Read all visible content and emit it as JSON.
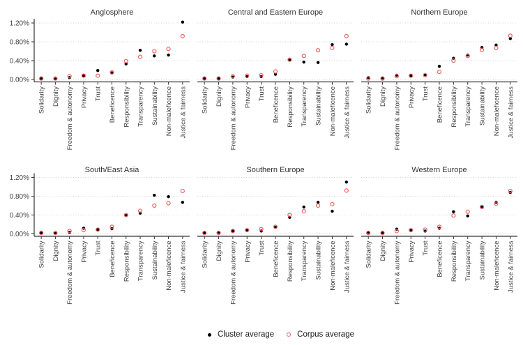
{
  "chart_data": {
    "type": "scatter",
    "facet_layout": "2 rows x 3 columns",
    "categories": [
      "Solidarity",
      "Dignity",
      "Freedom & autonomy",
      "Privacy",
      "Trust",
      "Beneficence",
      "Responsibility",
      "Transparency",
      "Sustainability",
      "Non-maleficence",
      "Justice & fairness"
    ],
    "y_tick_labels": [
      "0.00%",
      "0.40%",
      "0.80%",
      "1.20%"
    ],
    "y_tick_values": [
      0,
      0.4,
      0.8,
      1.2
    ],
    "ylim": [
      0,
      1.28
    ],
    "grid": "horizontal-dotted",
    "legend_position": "bottom",
    "series_legend": [
      {
        "name": "Cluster average",
        "marker": "filled-circle",
        "color": "#000000"
      },
      {
        "name": "Corpus average",
        "marker": "open-circle",
        "color": "#ee6363"
      }
    ],
    "facets": [
      {
        "title": "Anglosphere",
        "cluster_average": [
          0.02,
          0.01,
          0.04,
          0.08,
          0.19,
          0.14,
          0.33,
          0.62,
          0.5,
          0.52,
          1.22
        ],
        "corpus_average": [
          0.02,
          0.02,
          0.07,
          0.08,
          0.08,
          0.15,
          0.39,
          0.48,
          0.6,
          0.65,
          0.92
        ]
      },
      {
        "title": "Central and Eastern Europe",
        "cluster_average": [
          0.02,
          0.02,
          0.05,
          0.06,
          0.06,
          0.11,
          0.41,
          0.37,
          0.36,
          0.74,
          0.75
        ],
        "corpus_average": [
          0.02,
          0.02,
          0.07,
          0.08,
          0.09,
          0.17,
          0.42,
          0.5,
          0.62,
          0.67,
          0.92
        ]
      },
      {
        "title": "Northern Europe",
        "cluster_average": [
          0.04,
          0.03,
          0.09,
          0.08,
          0.1,
          0.28,
          0.45,
          0.52,
          0.68,
          0.73,
          0.87
        ],
        "corpus_average": [
          0.02,
          0.02,
          0.07,
          0.08,
          0.09,
          0.16,
          0.4,
          0.5,
          0.63,
          0.67,
          0.93
        ]
      },
      {
        "title": "South/East Asia",
        "cluster_average": [
          0.02,
          0.01,
          0.03,
          0.12,
          0.09,
          0.11,
          0.39,
          0.44,
          0.82,
          0.79,
          0.67
        ],
        "corpus_average": [
          0.02,
          0.02,
          0.06,
          0.08,
          0.09,
          0.15,
          0.4,
          0.49,
          0.6,
          0.65,
          0.91
        ]
      },
      {
        "title": "Southern Europe",
        "cluster_average": [
          0.02,
          0.03,
          0.06,
          0.07,
          0.06,
          0.14,
          0.35,
          0.57,
          0.67,
          0.48,
          1.1
        ],
        "corpus_average": [
          0.02,
          0.02,
          0.06,
          0.08,
          0.1,
          0.15,
          0.4,
          0.48,
          0.6,
          0.63,
          0.92
        ]
      },
      {
        "title": "Western Europe",
        "cluster_average": [
          0.03,
          0.02,
          0.1,
          0.07,
          0.06,
          0.12,
          0.47,
          0.38,
          0.58,
          0.67,
          0.88
        ],
        "corpus_average": [
          0.02,
          0.02,
          0.06,
          0.08,
          0.09,
          0.15,
          0.39,
          0.47,
          0.57,
          0.64,
          0.91
        ]
      }
    ]
  },
  "legend": {
    "cluster_label": "Cluster average",
    "corpus_label": "Corpus average"
  },
  "colors": {
    "cluster": "#000000",
    "corpus": "#ee6363",
    "gridline": "#d0d0d0",
    "axis": "#333333",
    "text": "#404040",
    "title": "#333333"
  }
}
